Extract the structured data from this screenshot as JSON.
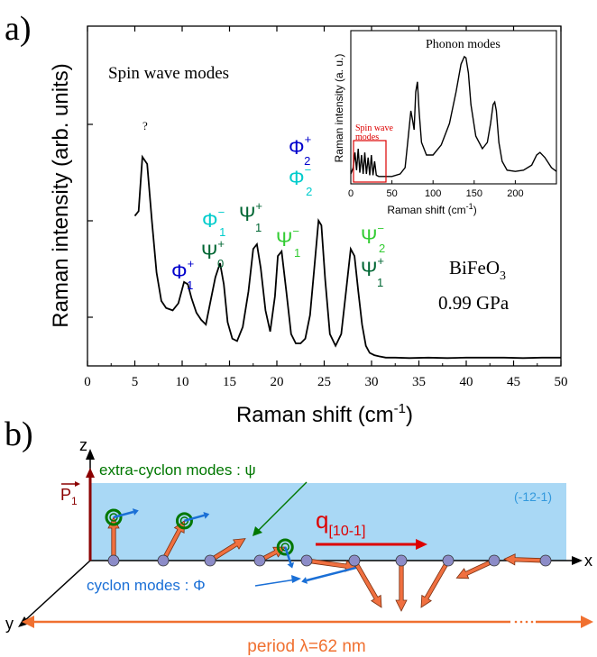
{
  "panel_a": {
    "label": "a)",
    "annotation_spin": "Spin wave modes",
    "question_mark": "?",
    "material": "BiFeO",
    "material_sub": "3",
    "pressure": "0.99 GPa",
    "xlabel_main": "Raman shift (cm",
    "xlabel_sup": "-1",
    "xlabel_close": ")",
    "ylabel": "Raman intensity (arb. units)",
    "mode_labels": {
      "phi_sym": "Φ",
      "psi_sym": "Ψ",
      "plus": "+",
      "minus": "−",
      "sub1": "1",
      "sub0": "0",
      "sub2": "2"
    },
    "colors": {
      "phi_dark": "#0000cc",
      "phi_light": "#00cccc",
      "psi_dark": "#006633",
      "psi_light": "#33cc33"
    }
  },
  "inset": {
    "title": "Phonon modes",
    "xlabel_main": "Raman shift (cm",
    "xlabel_sup": "-1",
    "xlabel_close": ")",
    "ylabel": "Raman intensity (a. u.)",
    "box_label_line1": "Spin wave",
    "box_label_line2": "modes",
    "box_color": "#dd0000"
  },
  "panel_b": {
    "label": "b)",
    "axis_z": "z",
    "axis_x": "x",
    "axis_y": "y",
    "p1_label": "P",
    "p1_sub": "1",
    "plane_label": "(-12-1)",
    "q_label": "q",
    "q_sub": "[10-1]",
    "extra_cyclon": "extra-cyclon modes : ψ",
    "cyclon": "cyclon modes : Φ",
    "period": "period λ=62 nm",
    "colors": {
      "plane": "#a9d8f5",
      "q_red": "#dd0000",
      "extra_green": "#007700",
      "cyclon_blue": "#1a6fd6",
      "period_orange": "#f07030",
      "p1_dark": "#8b0000",
      "plane_label": "#3399dd"
    }
  },
  "chart_data": [
    {
      "type": "line",
      "title": "",
      "xlabel": "Raman shift (cm-1)",
      "ylabel": "Raman intensity (arb. units)",
      "xlim": [
        0,
        50
      ],
      "x_ticks": [
        0,
        5,
        10,
        15,
        20,
        25,
        30,
        35,
        40,
        45,
        50
      ],
      "y_ticks_shown": false,
      "series": [
        {
          "x": [
            5.0,
            5.4,
            5.8,
            6.3,
            6.8,
            7.3,
            7.8,
            8.3,
            9.0,
            9.6,
            10.2,
            10.6,
            11.0,
            11.5,
            12.0,
            12.5,
            13.0,
            13.5,
            14.0,
            14.4,
            14.8,
            15.3,
            15.8,
            16.4,
            17.0,
            17.5,
            17.9,
            18.3,
            18.8,
            19.3,
            19.8,
            20.1,
            20.5,
            21.0,
            21.5,
            22.0,
            22.5,
            23.0,
            23.5,
            24.0,
            24.4,
            24.7,
            25.1,
            25.6,
            26.2,
            26.8,
            27.3,
            27.8,
            28.2,
            28.6,
            29.0,
            29.4,
            29.8,
            30.3,
            30.8,
            31.5,
            32.5,
            34.0,
            36.0,
            38.0,
            40.0,
            42.0,
            44.0,
            46.0,
            48.0,
            50.0
          ],
          "y": [
            0.62,
            0.64,
            0.87,
            0.84,
            0.6,
            0.38,
            0.26,
            0.23,
            0.22,
            0.25,
            0.34,
            0.33,
            0.27,
            0.21,
            0.18,
            0.16,
            0.26,
            0.36,
            0.42,
            0.33,
            0.17,
            0.1,
            0.09,
            0.15,
            0.3,
            0.48,
            0.5,
            0.4,
            0.22,
            0.13,
            0.28,
            0.45,
            0.47,
            0.3,
            0.12,
            0.08,
            0.08,
            0.1,
            0.2,
            0.42,
            0.6,
            0.58,
            0.35,
            0.12,
            0.07,
            0.12,
            0.3,
            0.48,
            0.45,
            0.3,
            0.16,
            0.07,
            0.04,
            0.03,
            0.025,
            0.02,
            0.02,
            0.018,
            0.02,
            0.018,
            0.02,
            0.02,
            0.02,
            0.018,
            0.02,
            0.02
          ]
        }
      ]
    },
    {
      "type": "line",
      "title": "Phonon modes",
      "xlabel": "Raman shift (cm-1)",
      "ylabel": "Raman intensity (a. u.)",
      "xlim": [
        0,
        250
      ],
      "x_ticks": [
        0,
        50,
        100,
        150,
        200
      ],
      "series": [
        {
          "x": [
            0,
            3,
            5,
            7,
            9,
            11,
            13,
            15,
            17,
            19,
            21,
            23,
            25,
            27,
            29,
            31,
            34,
            40,
            50,
            60,
            66,
            70,
            73,
            75,
            77,
            79,
            81,
            83,
            86,
            92,
            100,
            110,
            120,
            128,
            134,
            138,
            140,
            143,
            146,
            152,
            160,
            166,
            170,
            173,
            175,
            177,
            180,
            184,
            190,
            200,
            210,
            220,
            226,
            230,
            236,
            244,
            250
          ],
          "y": [
            0.05,
            0.1,
            0.22,
            0.08,
            0.25,
            0.06,
            0.2,
            0.05,
            0.22,
            0.05,
            0.18,
            0.04,
            0.2,
            0.04,
            0.15,
            0.04,
            0.03,
            0.03,
            0.03,
            0.05,
            0.1,
            0.35,
            0.55,
            0.48,
            0.4,
            0.7,
            0.78,
            0.55,
            0.3,
            0.2,
            0.2,
            0.28,
            0.45,
            0.7,
            0.92,
            0.98,
            0.97,
            0.85,
            0.6,
            0.35,
            0.25,
            0.3,
            0.45,
            0.6,
            0.62,
            0.55,
            0.3,
            0.15,
            0.08,
            0.07,
            0.08,
            0.12,
            0.2,
            0.22,
            0.18,
            0.1,
            0.07
          ]
        }
      ]
    }
  ]
}
